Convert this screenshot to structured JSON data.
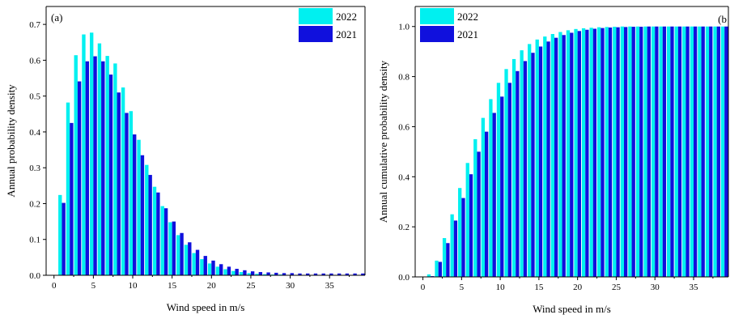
{
  "chart_data": [
    {
      "type": "bar",
      "panel_label": "(a)",
      "xlabel": "Wind speed in m/s",
      "ylabel": "Annual probability density",
      "xlim": [
        -1,
        39.5
      ],
      "ylim": [
        0,
        0.75
      ],
      "xticks": [
        0,
        5,
        10,
        15,
        20,
        25,
        30,
        35
      ],
      "yticks": [
        0.0,
        0.1,
        0.2,
        0.3,
        0.4,
        0.5,
        0.6,
        0.7
      ],
      "ytick_labels": [
        "0.0",
        "0.1",
        "0.2",
        "0.3",
        "0.4",
        "0.5",
        "0.6",
        "0.7"
      ],
      "grid": false,
      "legend_position": "top-right",
      "x": [
        1,
        2,
        3,
        4,
        5,
        6,
        7,
        8,
        9,
        10,
        11,
        12,
        13,
        14,
        15,
        16,
        17,
        18,
        19,
        20,
        21,
        22,
        23,
        24,
        25,
        26,
        27,
        28,
        29,
        30,
        31,
        32,
        33,
        34,
        35,
        36,
        37,
        38,
        39
      ],
      "series": [
        {
          "name": "2022",
          "color": "#00f0f0",
          "values": [
            0.224,
            0.482,
            0.614,
            0.672,
            0.677,
            0.647,
            0.612,
            0.591,
            0.524,
            0.458,
            0.378,
            0.308,
            0.247,
            0.193,
            0.148,
            0.112,
            0.085,
            0.062,
            0.045,
            0.033,
            0.024,
            0.017,
            0.012,
            0.009,
            0.006,
            0.004,
            0.003,
            0.002,
            0.002,
            0.001,
            0.001,
            0.001,
            0.001,
            0.001,
            0.001,
            0.001,
            0.001,
            0.001,
            0.001
          ]
        },
        {
          "name": "2021",
          "color": "#1010dd",
          "values": [
            0.202,
            0.425,
            0.541,
            0.597,
            0.611,
            0.597,
            0.56,
            0.51,
            0.453,
            0.393,
            0.335,
            0.28,
            0.231,
            0.187,
            0.15,
            0.118,
            0.092,
            0.071,
            0.054,
            0.041,
            0.031,
            0.024,
            0.018,
            0.014,
            0.011,
            0.009,
            0.008,
            0.007,
            0.006,
            0.006,
            0.005,
            0.005,
            0.005,
            0.005,
            0.005,
            0.005,
            0.005,
            0.005,
            0.005
          ]
        }
      ]
    },
    {
      "type": "bar",
      "panel_label": "(b",
      "xlabel": "Wind speed in m/s",
      "ylabel": "Annual cumulative probability density",
      "xlim": [
        -1,
        39.5
      ],
      "ylim": [
        0,
        1.08
      ],
      "xticks": [
        0,
        5,
        10,
        15,
        20,
        25,
        30,
        35
      ],
      "yticks": [
        0.0,
        0.2,
        0.4,
        0.6,
        0.8,
        1.0
      ],
      "ytick_labels": [
        "0.0",
        "0.2",
        "0.4",
        "0.6",
        "0.8",
        "1.0"
      ],
      "grid": false,
      "legend_position": "top-left",
      "x": [
        1,
        2,
        3,
        4,
        5,
        6,
        7,
        8,
        9,
        10,
        11,
        12,
        13,
        14,
        15,
        16,
        17,
        18,
        19,
        20,
        21,
        22,
        23,
        24,
        25,
        26,
        27,
        28,
        29,
        30,
        31,
        32,
        33,
        34,
        35,
        36,
        37,
        38,
        39
      ],
      "series": [
        {
          "name": "2022",
          "color": "#00f0f0",
          "values": [
            0.01,
            0.065,
            0.155,
            0.25,
            0.355,
            0.455,
            0.55,
            0.635,
            0.71,
            0.775,
            0.83,
            0.87,
            0.905,
            0.93,
            0.948,
            0.96,
            0.97,
            0.978,
            0.985,
            0.99,
            0.993,
            0.995,
            0.997,
            0.998,
            0.999,
            1.0,
            1.0,
            1.0,
            1.0,
            1.0,
            1.0,
            1.0,
            1.0,
            1.0,
            1.0,
            1.0,
            1.0,
            1.0,
            1.0
          ]
        },
        {
          "name": "2021",
          "color": "#1010dd",
          "values": [
            0.003,
            0.06,
            0.135,
            0.225,
            0.315,
            0.41,
            0.5,
            0.58,
            0.655,
            0.72,
            0.775,
            0.822,
            0.862,
            0.895,
            0.92,
            0.94,
            0.955,
            0.966,
            0.975,
            0.982,
            0.987,
            0.991,
            0.994,
            0.996,
            0.997,
            0.998,
            0.999,
            0.999,
            1.0,
            1.0,
            1.0,
            1.0,
            1.0,
            1.0,
            1.0,
            1.0,
            1.0,
            1.0,
            1.0
          ]
        }
      ]
    }
  ]
}
